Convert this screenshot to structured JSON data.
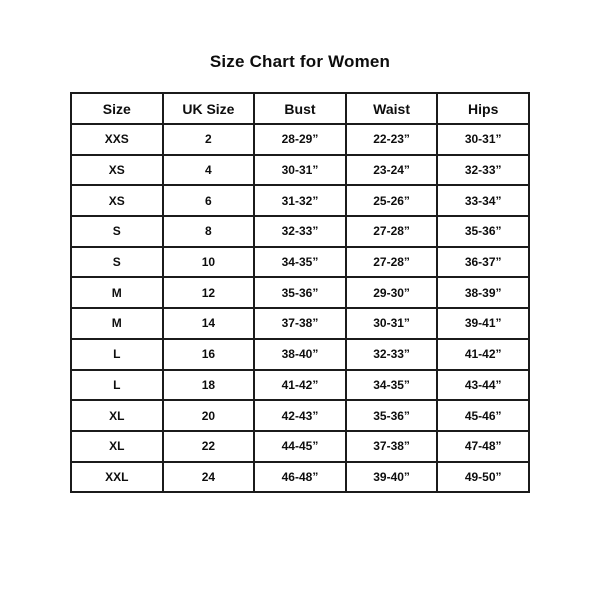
{
  "page": {
    "title": "Size Chart for Women"
  },
  "colors": {
    "background": "#ffffff",
    "text": "#0d0d0d",
    "border": "#1b1b1b"
  },
  "table": {
    "columns": [
      "Size",
      "UK Size",
      "Bust",
      "Waist",
      "Hips"
    ],
    "rows": [
      [
        "XXS",
        "2",
        "28-29”",
        "22-23”",
        "30-31”"
      ],
      [
        "XS",
        "4",
        "30-31”",
        "23-24”",
        "32-33”"
      ],
      [
        "XS",
        "6",
        "31-32”",
        "25-26”",
        "33-34”"
      ],
      [
        "S",
        "8",
        "32-33”",
        "27-28”",
        "35-36”"
      ],
      [
        "S",
        "10",
        "34-35”",
        "27-28”",
        "36-37”"
      ],
      [
        "M",
        "12",
        "35-36”",
        "29-30”",
        "38-39”"
      ],
      [
        "M",
        "14",
        "37-38”",
        "30-31”",
        "39-41”"
      ],
      [
        "L",
        "16",
        "38-40”",
        "32-33”",
        "41-42”"
      ],
      [
        "L",
        "18",
        "41-42”",
        "34-35”",
        "43-44”"
      ],
      [
        "XL",
        "20",
        "42-43”",
        "35-36”",
        "45-46”"
      ],
      [
        "XL",
        "22",
        "44-45”",
        "37-38”",
        "47-48”"
      ],
      [
        "XXL",
        "24",
        "46-48”",
        "39-40”",
        "49-50”"
      ]
    ]
  },
  "chart_data": {
    "type": "table",
    "title": "Size Chart for Women",
    "columns": [
      "Size",
      "UK Size",
      "Bust",
      "Waist",
      "Hips"
    ],
    "rows": [
      [
        "XXS",
        "2",
        "28-29”",
        "22-23”",
        "30-31”"
      ],
      [
        "XS",
        "4",
        "30-31”",
        "23-24”",
        "32-33”"
      ],
      [
        "XS",
        "6",
        "31-32”",
        "25-26”",
        "33-34”"
      ],
      [
        "S",
        "8",
        "32-33”",
        "27-28”",
        "35-36”"
      ],
      [
        "S",
        "10",
        "34-35”",
        "27-28”",
        "36-37”"
      ],
      [
        "M",
        "12",
        "35-36”",
        "29-30”",
        "38-39”"
      ],
      [
        "M",
        "14",
        "37-38”",
        "30-31”",
        "39-41”"
      ],
      [
        "L",
        "16",
        "38-40”",
        "32-33”",
        "41-42”"
      ],
      [
        "L",
        "18",
        "41-42”",
        "34-35”",
        "43-44”"
      ],
      [
        "XL",
        "20",
        "42-43”",
        "35-36”",
        "45-46”"
      ],
      [
        "XL",
        "22",
        "44-45”",
        "37-38”",
        "47-48”"
      ],
      [
        "XXL",
        "24",
        "46-48”",
        "39-40”",
        "49-50”"
      ]
    ],
    "units": "inches",
    "layout": "header row on top, 12 data rows, black 2px grid lines, all text bold centered"
  }
}
